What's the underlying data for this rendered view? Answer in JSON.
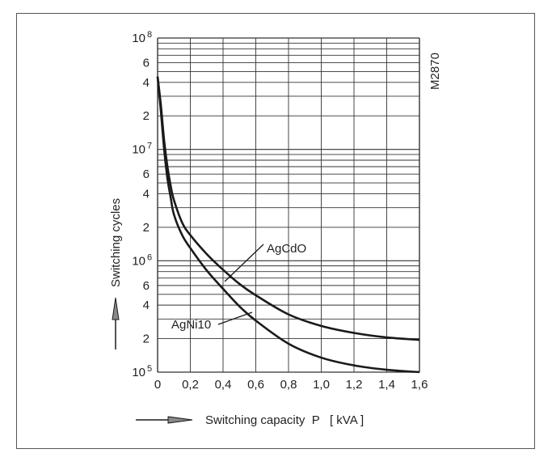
{
  "chart_data": {
    "type": "line",
    "xlabel": "Switching capacity  P   [ kVA ]",
    "ylabel": "Switching cycles",
    "code": "M2870",
    "x_scale": "linear",
    "y_scale": "log",
    "xlim": [
      0,
      1.6
    ],
    "ylim": [
      100000,
      100000000
    ],
    "x_ticks": [
      "0",
      "0,2",
      "0,4",
      "0,6",
      "0,8",
      "1,0",
      "1,2",
      "1,4",
      "1,6"
    ],
    "y_ticks": [
      {
        "base": "10",
        "exp": "8",
        "value": 100000000
      },
      {
        "base": "6",
        "exp": "",
        "value": 60000000
      },
      {
        "base": "4",
        "exp": "",
        "value": 40000000
      },
      {
        "base": "2",
        "exp": "",
        "value": 20000000
      },
      {
        "base": "10",
        "exp": "7",
        "value": 10000000
      },
      {
        "base": "6",
        "exp": "",
        "value": 6000000
      },
      {
        "base": "4",
        "exp": "",
        "value": 4000000
      },
      {
        "base": "2",
        "exp": "",
        "value": 2000000
      },
      {
        "base": "10",
        "exp": "6",
        "value": 1000000
      },
      {
        "base": "6",
        "exp": "",
        "value": 600000
      },
      {
        "base": "4",
        "exp": "",
        "value": 400000
      },
      {
        "base": "2",
        "exp": "",
        "value": 200000
      },
      {
        "base": "10",
        "exp": "5",
        "value": 100000
      }
    ],
    "grid": true,
    "series": [
      {
        "name": "AgCdO",
        "x": [
          0,
          0.02,
          0.04,
          0.06,
          0.08,
          0.1,
          0.15,
          0.2,
          0.3,
          0.4,
          0.5,
          0.6,
          0.8,
          1.0,
          1.2,
          1.4,
          1.6
        ],
        "y": [
          45000000,
          25000000,
          12000000,
          7000000,
          4700000,
          3500000,
          2200000,
          1700000,
          1150000,
          830000,
          620000,
          490000,
          330000,
          260000,
          225000,
          205000,
          195000
        ]
      },
      {
        "name": "AgNi10",
        "x": [
          0,
          0.02,
          0.04,
          0.06,
          0.08,
          0.1,
          0.15,
          0.2,
          0.3,
          0.4,
          0.5,
          0.6,
          0.8,
          1.0,
          1.2,
          1.4,
          1.6
        ],
        "y": [
          45000000,
          22000000,
          10000000,
          5500000,
          3700000,
          2600000,
          1700000,
          1300000,
          820000,
          560000,
          390000,
          290000,
          180000,
          135000,
          115000,
          105000,
          100000
        ]
      }
    ]
  },
  "colors": {
    "line": "#1a1a1a",
    "grid": "#333333",
    "frame": "#555555"
  }
}
